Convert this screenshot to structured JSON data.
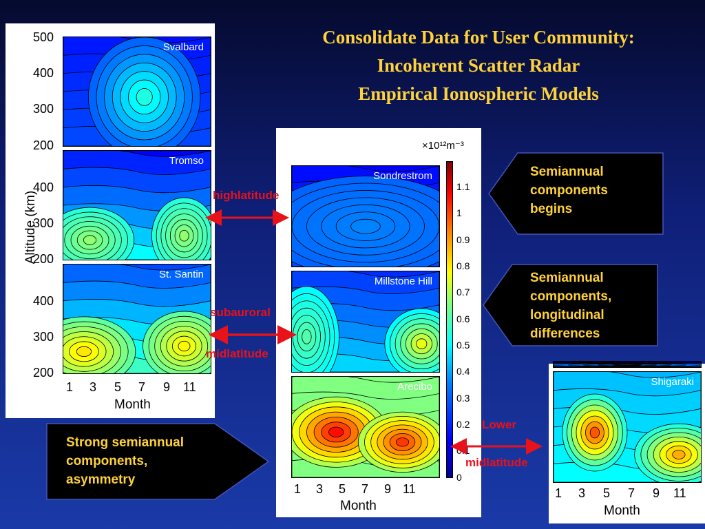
{
  "title": {
    "line1": "Consolidate Data for User Community:",
    "line2": "Incoherent Scatter Radar",
    "line3": "Empirical Ionospheric Models"
  },
  "left_figure": {
    "ylabel": "Altitude (km)",
    "xlabel": "Month",
    "x_ticks": [
      "1",
      "3",
      "5",
      "7",
      "9",
      "11"
    ],
    "panels": [
      {
        "name": "Svalbard",
        "y_ticks": [
          "500",
          "400",
          "300",
          "200"
        ]
      },
      {
        "name": "Tromso",
        "y_ticks": [
          "400",
          "300",
          "200"
        ]
      },
      {
        "name": "St. Santin",
        "y_ticks": [
          "400",
          "300",
          "200"
        ]
      }
    ]
  },
  "middle_figure": {
    "unit_label": "×10¹²m⁻³",
    "xlabel": "Month",
    "x_ticks": [
      "1",
      "3",
      "5",
      "7",
      "9",
      "11"
    ],
    "panels": [
      {
        "name": "Sondrestrom"
      },
      {
        "name": "Millstone Hill"
      },
      {
        "name": "Arecibo"
      }
    ],
    "colorbar_ticks": [
      "1.1",
      "1",
      "0.9",
      "0.8",
      "0.7",
      "0.6",
      "0.5",
      "0.4",
      "0.3",
      "0.2",
      "0.1",
      "0"
    ]
  },
  "right_figure": {
    "xlabel": "Month",
    "x_ticks": [
      "1",
      "3",
      "5",
      "7",
      "9",
      "11"
    ],
    "panels": [
      {
        "name": "Shigaraki"
      }
    ]
  },
  "callouts": {
    "top_right": [
      "Semiannual",
      "components",
      "begins"
    ],
    "mid_right": [
      "Semiannual",
      "components,",
      "longitudinal",
      "differences"
    ],
    "bottom_left": [
      "Strong semiannual",
      "components,",
      "asymmetry"
    ]
  },
  "labels": {
    "highlatitude": "highlatitude",
    "subauroral": "subauroral",
    "midlatitude": "midlatitude",
    "lower": "Lower",
    "lower_midlatitude": "midlatitude"
  },
  "colors": {
    "title": "#ffd23a",
    "callout_text": "#ffd23a",
    "arrow_red": "#e8121a",
    "background_top": "#050a2e",
    "background_bottom": "#1a3aa8"
  }
}
